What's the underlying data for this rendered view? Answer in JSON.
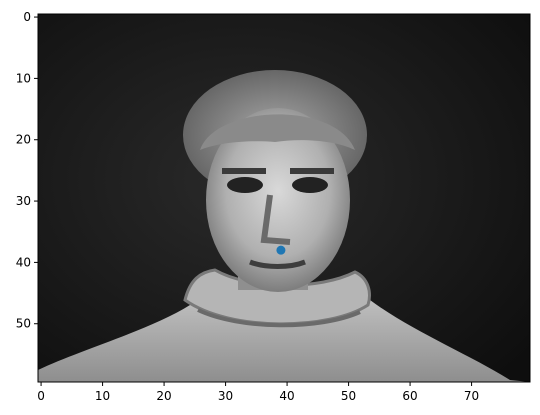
{
  "image": {
    "description_type": "grayscale-face-pixel-image",
    "colormap": "gray",
    "pixel_grid": {
      "cols": 80,
      "rows": 60
    },
    "marker": {
      "x": 39,
      "y": 38,
      "color": "#1f77b4"
    }
  },
  "axes": {
    "x_ticks": [
      {
        "value": 0,
        "label": "0"
      },
      {
        "value": 10,
        "label": "10"
      },
      {
        "value": 20,
        "label": "20"
      },
      {
        "value": 30,
        "label": "30"
      },
      {
        "value": 40,
        "label": "40"
      },
      {
        "value": 50,
        "label": "50"
      },
      {
        "value": 60,
        "label": "60"
      },
      {
        "value": 70,
        "label": "70"
      }
    ],
    "y_ticks": [
      {
        "value": 0,
        "label": "0"
      },
      {
        "value": 10,
        "label": "10"
      },
      {
        "value": 20,
        "label": "20"
      },
      {
        "value": 30,
        "label": "30"
      },
      {
        "value": 40,
        "label": "40"
      },
      {
        "value": 50,
        "label": "50"
      }
    ]
  }
}
